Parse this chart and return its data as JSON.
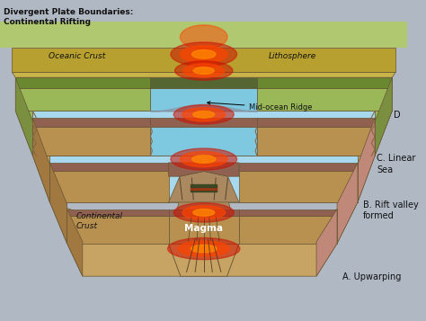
{
  "title": "Divergent Plate Boundaries:\nContinental Rifting",
  "bg_color": "#b0b8c4",
  "labels": {
    "A": "A. Upwarping",
    "B": "B. Rift valley\nformed",
    "C": "C. Linear\nSea",
    "D": "D",
    "continental_crust": "Continental\nCrust",
    "magma": "Magma",
    "mid_ocean": "Mid-ocean Ridge",
    "oceanic_crust": "Oceanic Crust",
    "lithosphere": "Lithosphere"
  },
  "colors": {
    "sandy_top": "#c8a464",
    "sandy_face": "#b89050",
    "sandy_side": "#a07840",
    "brown_layer": "#906050",
    "brown_side": "#784038",
    "ocean_blue": "#7ec8e0",
    "ocean_top": "#a8d8ee",
    "red_glow1": "#cc1100",
    "red_glow2": "#ff4400",
    "orange_glow": "#ff8800",
    "green_land": "#88aa44",
    "litho_top": "#c8b448",
    "litho_face": "#b8a030",
    "text_dark": "#111111",
    "arrow_white": "#ffffff",
    "crack_dark": "#443322",
    "rift_fill": "#aa8860",
    "pink_side": "#c08878"
  }
}
